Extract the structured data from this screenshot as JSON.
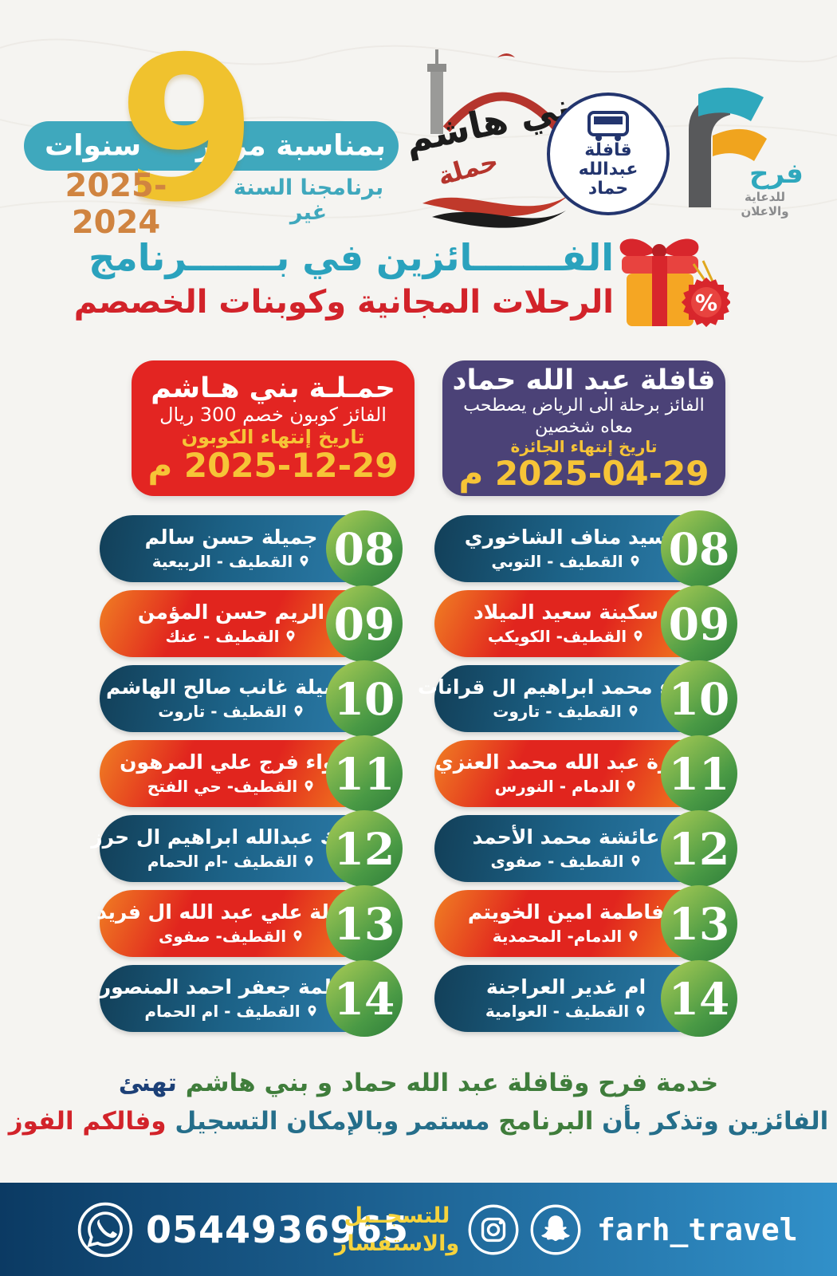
{
  "header": {
    "occasion": "بمناسبة مرور",
    "years_word": "سنوات",
    "big_number": "9",
    "subtitle": "برنامجنا السنة غير",
    "years_range": "2025-2024"
  },
  "logos": {
    "bani_hashim": {
      "line1": "بني هاشم",
      "line2": "حملة"
    },
    "qafila": {
      "line1": "قافلة",
      "line2": "عبدالله",
      "line3": "حماد"
    },
    "farah": {
      "letter": "F",
      "name": "فرح",
      "tagline": "للدعاية والاعلان"
    }
  },
  "title": {
    "line1": "الفـــــــائزين في بـــــــرنامج",
    "line2": "الرحلات المجانية وكوبنات الخصصم"
  },
  "prizes": {
    "bani_hashim": {
      "title": "حمـلـة بني هـاشم",
      "desc": "الفائز كوبون خصم 300 ريال",
      "expiry_label": "تاريخ إنتهاء الكوبون",
      "expiry_date": "2025-12-29 م"
    },
    "qafila": {
      "title": "قافلة عبد الله حماد",
      "desc_line1": "الفائز برحلة الى الرياض  يصطحب",
      "desc_line2": "معاه شخصين",
      "expiry_label": "تاريخ إنتهاء الجائزة",
      "expiry_date": "2025-04-29 م"
    }
  },
  "winners": {
    "left": [
      {
        "num": "08",
        "name": "جميلة حسن سالم",
        "location": "القطيف - الربيعية"
      },
      {
        "num": "09",
        "name": "الريم حسن المؤمن",
        "location": "القطيف - عنك"
      },
      {
        "num": "10",
        "name": "فضيلة غانب صالح الهاشم",
        "location": "القطيف - تاروت"
      },
      {
        "num": "11",
        "name": "لواء فرج  علي المرهون",
        "location": "القطيف- حي الفتح"
      },
      {
        "num": "12",
        "name": "مسك عبدالله  ابراهيم ال حرز",
        "location": "القطيف -ام الحمام"
      },
      {
        "num": "13",
        "name": "عقيلة علي  عبد الله ال فريد",
        "location": "القطيف- صفوى"
      },
      {
        "num": "14",
        "name": "فاطمة جعفر  احمد المنصور",
        "location": "القطيف - ام الحمام"
      }
    ],
    "right": [
      {
        "num": "08",
        "name": "سيد مناف الشاخوري",
        "location": "القطيف - التوبي"
      },
      {
        "num": "09",
        "name": "سكينة سعيد الميلاد",
        "location": "القطيف- الكويكب"
      },
      {
        "num": "10",
        "name": "زهراء محمد  ابراهيم ال قرانات",
        "location": "القطيف - تاروت"
      },
      {
        "num": "11",
        "name": "سارة عبد الله  محمد العنزي",
        "location": "الدمام - النورس"
      },
      {
        "num": "12",
        "name": "عائشة محمد الأحمد",
        "location": "القطيف - صفوى"
      },
      {
        "num": "13",
        "name": "فاطمة امين الخويتم",
        "location": "الدمام- المحمدية"
      },
      {
        "num": "14",
        "name": "ام غدير العراجنة",
        "location": "القطيف - العوامية"
      }
    ]
  },
  "congrats": {
    "line1_main": "خدمة فرح وقافلة عبد الله حماد و بني هاشم",
    "line1_end": "تهنئ",
    "line2_part1": "الفائزين وتذكر بأن",
    "line2_part2": "البرنامج",
    "line2_part3": "مستمر وبالإمكان التسجيل",
    "line2_part4": "وفالكم الفوز"
  },
  "footer": {
    "phone": "0544936965",
    "reg_line1": "للتسجــيل",
    "reg_line2": "والاستفسار",
    "handle": "farh_travel"
  },
  "icons": {
    "whatsapp": "whatsapp-icon",
    "instagram": "instagram-icon",
    "snapchat": "snapchat-icon",
    "location": "location-pin-icon",
    "gift": "gift-icon"
  },
  "colors": {
    "teal": "#3fa8bd",
    "title_teal": "#2aa2bd",
    "title_red": "#d2232a",
    "box_red": "#e32522",
    "box_purple": "#4b4277",
    "accent_yellow": "#f6c437",
    "year_orange": "#d08440",
    "nine_gold": "#f0c22e",
    "pill_blue_dark": "#123f58",
    "pill_blue_light": "#2e7fae",
    "pill_red": "#e1251e",
    "pill_orange": "#f6941e",
    "badge_green_light": "#accd55",
    "badge_green_dark": "#2e7d3a",
    "footer_navy": "#0b3a63",
    "footer_blue": "#3190c9",
    "congrats_green": "#3f7d3b",
    "congrats_teal": "#256e8a",
    "congrats_navy": "#1c4077"
  }
}
